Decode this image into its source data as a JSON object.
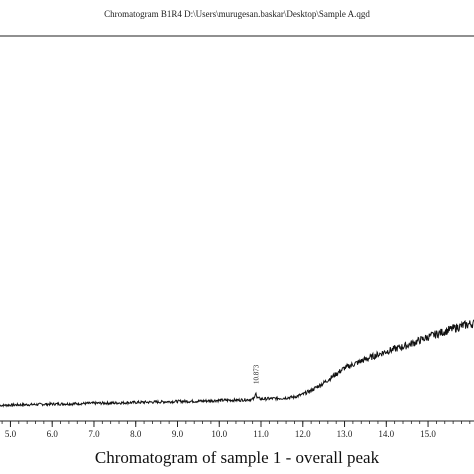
{
  "header": {
    "title": "Chromatogram B1R4 D:\\Users\\murugesan.baskar\\Desktop\\Sample A.qgd"
  },
  "caption": "Chromatogram of sample 1 - overall peak",
  "chart_data": {
    "type": "line",
    "xlim": [
      4.75,
      16.1
    ],
    "ylim": [
      0,
      100
    ],
    "x_ticks": [
      5.0,
      6.0,
      7.0,
      8.0,
      9.0,
      10.0,
      11.0,
      12.0,
      13.0,
      14.0,
      15.0
    ],
    "x_tick_labels": [
      "5.0",
      "6.0",
      "7.0",
      "8.0",
      "9.0",
      "10.0",
      "11.0",
      "12.0",
      "13.0",
      "14.0",
      "15.0"
    ],
    "series": [
      {
        "x": [
          4.75,
          5.0,
          5.5,
          6.0,
          6.5,
          7.0,
          7.5,
          8.0,
          8.5,
          9.0,
          9.5,
          10.0,
          10.5,
          10.8,
          10.85,
          10.873,
          10.9,
          11.0,
          11.5,
          11.8,
          12.0,
          12.2,
          12.5,
          12.8,
          13.0,
          13.5,
          14.0,
          14.5,
          15.0,
          15.5,
          15.8,
          16.0,
          16.1
        ],
        "y": [
          0.8,
          1.0,
          1.2,
          1.5,
          1.6,
          1.9,
          2.0,
          2.3,
          2.5,
          2.8,
          2.9,
          3.3,
          3.5,
          3.8,
          4.5,
          8.5,
          4.6,
          4.0,
          4.4,
          5.0,
          6.3,
          8.3,
          12.0,
          16.5,
          19.5,
          23.8,
          27.8,
          30.8,
          35.0,
          38.5,
          40.5,
          41.5,
          41.8
        ]
      }
    ],
    "annotations": [
      {
        "x": 10.873,
        "label": "10.873"
      }
    ]
  }
}
